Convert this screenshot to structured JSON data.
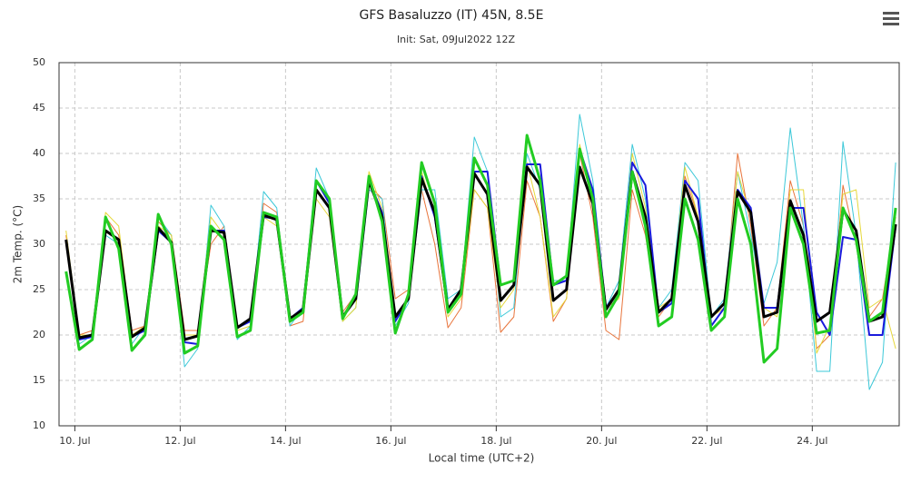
{
  "chart_data": {
    "type": "line",
    "title": "GFS Basaluzzo (IT) 45N, 8.5E",
    "subtitle": "Init: Sat, 09Jul2022 12Z",
    "x_label": "Local time (UTC+2)",
    "y_label": "2m Temp. (°C)",
    "x": [
      9.833,
      10.083,
      10.333,
      10.583,
      10.833,
      11.083,
      11.333,
      11.583,
      11.833,
      12.083,
      12.333,
      12.583,
      12.833,
      13.083,
      13.333,
      13.583,
      13.833,
      14.083,
      14.333,
      14.583,
      14.833,
      15.083,
      15.333,
      15.583,
      15.833,
      16.083,
      16.333,
      16.583,
      16.833,
      17.083,
      17.333,
      17.583,
      17.833,
      18.083,
      18.333,
      18.583,
      18.833,
      19.083,
      19.333,
      19.583,
      19.833,
      20.083,
      20.333,
      20.583,
      20.833,
      21.083,
      21.333,
      21.583,
      21.833,
      22.083,
      22.333,
      22.583,
      22.833,
      23.083,
      23.333,
      23.583,
      23.833,
      24.083,
      24.333,
      24.583,
      24.833,
      25.083,
      25.333,
      25.583
    ],
    "xlim": [
      9.7,
      25.65
    ],
    "xticks": [
      {
        "value": 10,
        "label": "10. Jul"
      },
      {
        "value": 12,
        "label": "12. Jul"
      },
      {
        "value": 14,
        "label": "14. Jul"
      },
      {
        "value": 16,
        "label": "16. Jul"
      },
      {
        "value": 18,
        "label": "18. Jul"
      },
      {
        "value": 20,
        "label": "20. Jul"
      },
      {
        "value": 22,
        "label": "22. Jul"
      },
      {
        "value": 24,
        "label": "24. Jul"
      }
    ],
    "ylim": [
      10,
      50
    ],
    "yticks": [
      10,
      15,
      20,
      25,
      30,
      35,
      40,
      45,
      50
    ],
    "grid": true,
    "series": [
      {
        "color": "#e8743b",
        "values": [
          31,
          20,
          20.5,
          33,
          31,
          20.5,
          21,
          32.5,
          31,
          20.5,
          20.5,
          30,
          32,
          21,
          21.5,
          34.5,
          33.5,
          21,
          21.5,
          36,
          34,
          22.5,
          24.5,
          36.5,
          35,
          24,
          25,
          36,
          30,
          20.8,
          23,
          36,
          34,
          20.3,
          22,
          37,
          33,
          21.5,
          24,
          40,
          33,
          20.5,
          19.5,
          36,
          31,
          22,
          24,
          37.5,
          33,
          22,
          23,
          40,
          32,
          21,
          23,
          37,
          32,
          18.5,
          20,
          36.5,
          30,
          22,
          24,
          33
        ]
      },
      {
        "color": "#3cc8d8",
        "values": [
          27,
          19,
          20,
          31,
          30,
          19,
          21,
          33,
          31,
          16.5,
          18.5,
          34.3,
          32,
          19.5,
          21,
          35.8,
          34,
          21,
          23,
          38.4,
          35,
          21.5,
          23,
          36,
          35,
          21,
          23.5,
          36,
          36,
          24,
          25,
          41.8,
          38,
          22,
          23,
          40,
          36,
          26,
          26,
          44.3,
          37,
          23,
          26,
          41,
          35,
          23,
          25,
          39,
          37,
          22,
          24,
          38,
          31,
          23.5,
          28,
          42.8,
          32,
          16,
          16,
          41.3,
          31,
          14,
          17,
          39
        ]
      },
      {
        "color": "#e6d83a",
        "values": [
          31.5,
          20,
          20,
          33.5,
          32,
          20,
          21,
          32,
          31,
          20,
          20,
          33,
          31,
          20.5,
          21,
          33,
          32,
          21.5,
          22.5,
          35,
          33,
          21.5,
          23,
          38,
          34,
          21.5,
          24,
          38,
          33,
          22,
          24,
          36,
          34,
          23,
          25,
          39,
          33,
          22,
          24,
          41,
          35,
          23,
          24,
          40,
          34,
          23,
          24,
          38.5,
          33,
          22,
          23,
          38,
          33,
          23,
          22,
          36,
          36,
          18,
          21,
          35.5,
          36,
          23,
          24,
          18.5
        ]
      },
      {
        "color": "#1a1adc",
        "values": [
          30.5,
          19.5,
          19.8,
          31.5,
          30.5,
          19.8,
          20.5,
          31.5,
          30.2,
          19.2,
          19,
          31.5,
          31.5,
          20.8,
          21.5,
          33,
          32.8,
          21.8,
          23,
          37,
          34.5,
          22,
          24,
          37,
          33.5,
          21.5,
          24,
          37.5,
          33,
          22.8,
          25,
          38,
          38,
          25.5,
          26,
          38.8,
          38.8,
          25.5,
          26,
          40.5,
          36,
          23,
          25,
          39,
          36.5,
          22.5,
          23.5,
          37,
          35,
          21,
          23,
          36,
          34,
          23,
          23,
          34,
          34,
          22.5,
          20,
          30.8,
          30.5,
          20,
          20,
          32
        ]
      },
      {
        "color": "#000000",
        "values": [
          30.5,
          19.7,
          20,
          31.5,
          30.5,
          19.8,
          20.8,
          31.8,
          30.2,
          19.5,
          19.9,
          31.5,
          31.3,
          20.8,
          21.8,
          33.2,
          32.7,
          21.8,
          22.8,
          36,
          34,
          22,
          24,
          37,
          33,
          22,
          24,
          37.2,
          33.5,
          22.8,
          25,
          37.8,
          35.5,
          23.8,
          25.5,
          38.5,
          36.5,
          23.8,
          25,
          38.5,
          34.5,
          22.8,
          25,
          38,
          33,
          22.5,
          24,
          36.5,
          32.5,
          22,
          23.5,
          35.8,
          33.5,
          22,
          22.5,
          34.8,
          31,
          21.5,
          22.5,
          33.8,
          31.5,
          21.5,
          22,
          32.2
        ]
      },
      {
        "color": "#22cc22",
        "values": [
          27,
          18.4,
          19.5,
          33,
          29.5,
          18.3,
          20,
          33.3,
          30,
          18,
          18.8,
          32,
          30.5,
          19.8,
          20.5,
          33.5,
          33,
          21.5,
          22.5,
          37,
          35,
          21.8,
          24.5,
          37.5,
          32.5,
          20.2,
          24.5,
          39,
          34.5,
          22.5,
          24.5,
          39.5,
          36.5,
          25.5,
          26,
          42,
          37,
          25.5,
          26.5,
          40.5,
          35,
          22,
          24.5,
          38,
          32,
          21,
          22,
          35,
          30.5,
          20.5,
          22,
          35,
          30,
          17,
          18.5,
          34,
          30,
          20.2,
          20.5,
          34,
          30.5,
          21.5,
          22.5,
          34
        ]
      }
    ]
  }
}
